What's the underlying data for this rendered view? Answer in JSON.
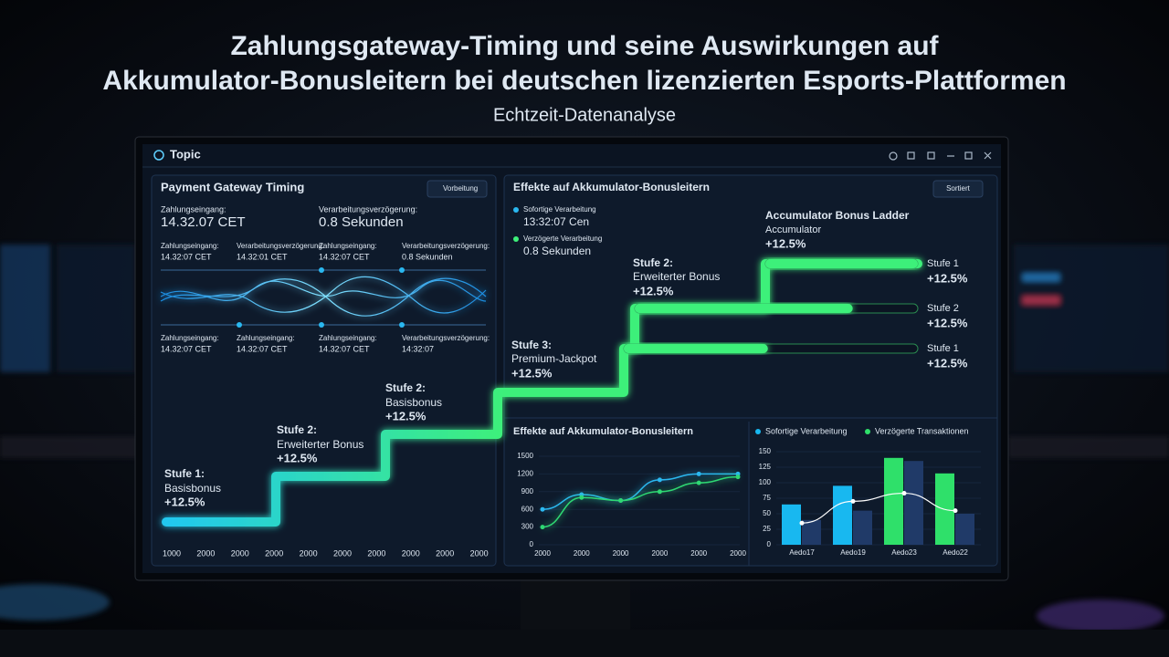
{
  "header": {
    "title_line1": "Zahlungsgateway-Timing und seine Auswirkungen auf",
    "title_line2": "Akkumulator-Bonusleitern bei deutschen lizenzierten Esports-Plattformen",
    "subtitle": "Echtzeit-Datenanalyse"
  },
  "window": {
    "title": "Topic"
  },
  "left_panel": {
    "title": "Payment Gateway Timing",
    "dropdown": "Vorbeitung",
    "fields": [
      {
        "label": "Zahlungseingang:",
        "value": "14.32.07 CET"
      },
      {
        "label": "Verarbeitungsverzögerung:",
        "value": "0.8 Sekunden"
      }
    ],
    "wave_top": [
      {
        "label": "Zahlungseingang:",
        "value": "14.32:07 CET"
      },
      {
        "label": "Verarbeitungsverzögerung:",
        "value": "14.32:01 CET"
      },
      {
        "label": "Zahlungseingang:",
        "value": "14.32:07 CET"
      },
      {
        "label": "Verarbeitungsverzögerung:",
        "value": "0.8 Sekunden"
      }
    ],
    "wave_bottom": [
      {
        "label": "Zahlungseingang:",
        "value": "14.32:07 CET"
      },
      {
        "label": "Zahlungseingang:",
        "value": "14.32:07 CET"
      },
      {
        "label": "Zahlungseingang:",
        "value": "14.32:07 CET"
      },
      {
        "label": "Verarbeitungsverzögerung:",
        "value": "14:32:07"
      }
    ],
    "steps": [
      {
        "name": "Stufe 1:",
        "label": "Basisbonus",
        "change": "+12.5%"
      },
      {
        "name": "Stufe 2:",
        "label": "Erweiterter Bonus",
        "change": "+12.5%"
      },
      {
        "name": "Stufe 2:",
        "label": "Basisbonus",
        "change": "+12.5%"
      }
    ],
    "x_labels": [
      "1000",
      "2000",
      "2000",
      "2000",
      "2000",
      "2000",
      "2000",
      "2000",
      "2000",
      "2000"
    ]
  },
  "right_panel": {
    "title": "Effekte auf Akkumulator-Bonusleitern",
    "dropdown": "Sortiert",
    "legend": [
      {
        "label": "Sofortige Verarbeitung",
        "value": "13:32:07 Cen"
      },
      {
        "label": "Verzögerte Verarbeitung",
        "value": "0.8 Sekunden"
      }
    ],
    "ladder": {
      "title": "Accumulator Bonus Ladder",
      "label": "Accumulator",
      "change": "+12.5%"
    },
    "steps": [
      {
        "name": "Stufe 2:",
        "label": "Erweiterter Bonus",
        "change": "+12.5%"
      },
      {
        "name": "Stufe 3:",
        "label": "Premium-Jackpot",
        "change": "+12.5%"
      }
    ],
    "progress_rows": [
      {
        "name": "Stufe 1",
        "change": "+12.5%",
        "progress": 100
      },
      {
        "name": "Stufe 2",
        "change": "+12.5%",
        "progress": 77
      },
      {
        "name": "Stufe 1",
        "change": "+12.5%",
        "progress": 49
      }
    ]
  },
  "line_chart": {
    "type": "line",
    "title": "Effekte auf Akkumulator-Bonusleitern",
    "categories": [
      "2000",
      "2000",
      "2000",
      "2000",
      "2000",
      "2000"
    ],
    "ylim": [
      0,
      1500
    ],
    "yticks": [
      0,
      300,
      600,
      900,
      1200,
      1500
    ],
    "series": [
      {
        "name": "Sofortige Verarbeitung",
        "color": "#2bb8f0",
        "values": [
          600,
          850,
          750,
          1100,
          1200,
          1200
        ]
      },
      {
        "name": "Verzögerte Transaktionen",
        "color": "#2fd873",
        "values": [
          300,
          800,
          750,
          900,
          1050,
          1150
        ]
      }
    ]
  },
  "bar_chart": {
    "type": "bar",
    "categories": [
      "Aedo17",
      "Aedo19",
      "Aedo23",
      "Aedo22"
    ],
    "ylim": [
      0,
      150
    ],
    "yticks": [
      0,
      25,
      50,
      75,
      100,
      125,
      150
    ],
    "series": [
      {
        "name": "Sofortige Verarbeitung",
        "color": "#18b8f0",
        "bar_colors": [
          "#18b8f0",
          "#18b8f0",
          "#2fe06a",
          "#2fe06a"
        ],
        "values": [
          65,
          95,
          140,
          115
        ]
      },
      {
        "name": "Verzögerte Transaktionen",
        "color": "#2fe06a",
        "bar_colors": [
          "#203a68",
          "#203a68",
          "#203a68",
          "#203a68"
        ],
        "values": [
          40,
          55,
          135,
          50
        ]
      }
    ],
    "trend": {
      "color": "#ffffff",
      "values": [
        35,
        70,
        83,
        55
      ]
    }
  }
}
